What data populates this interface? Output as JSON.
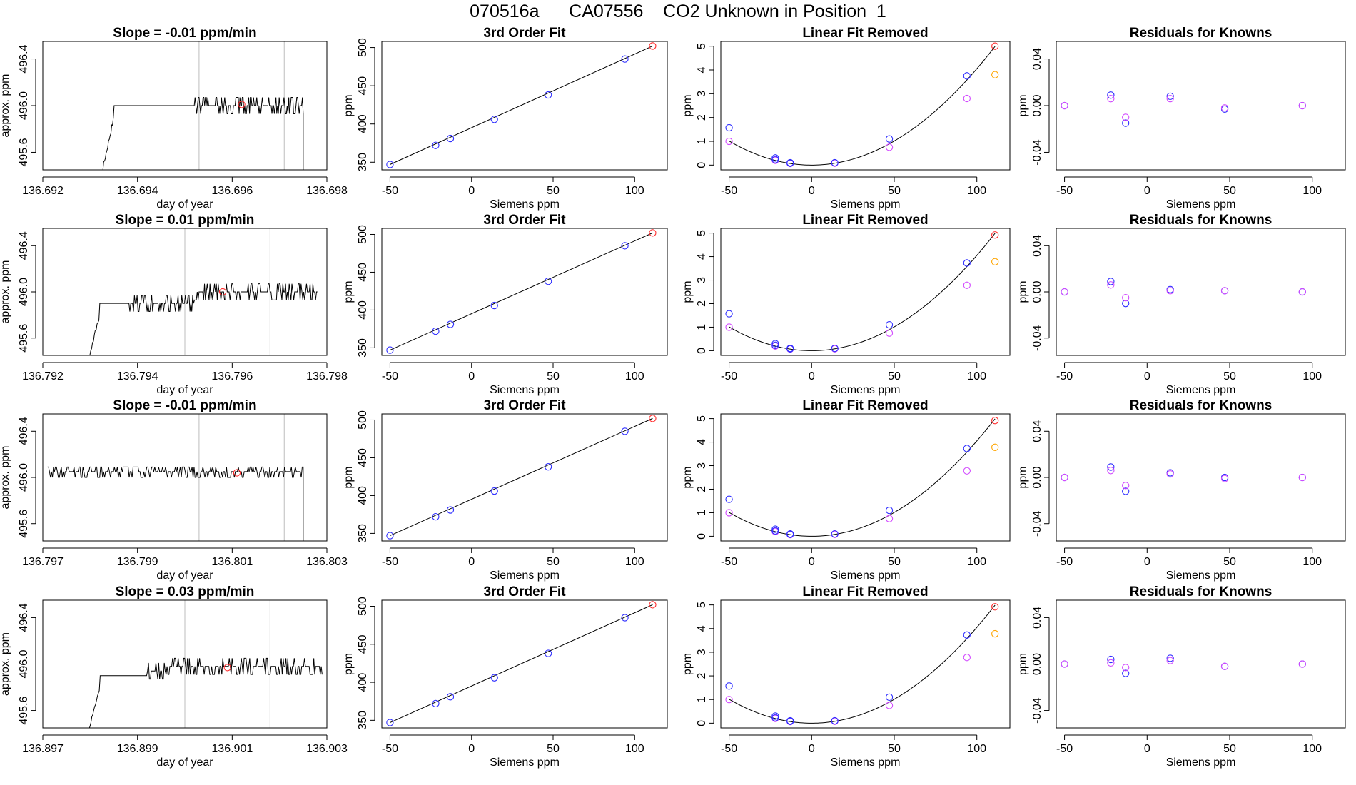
{
  "main_title": "070516a      CA07556    CO2 Unknown in Position  1",
  "colors": {
    "known": "#2e2eff",
    "unknown": "#ff2a2a",
    "adjusted": "#d24bff",
    "unknown_adjusted": "#ffa500",
    "line": "#000000",
    "interval_line": "#c8c8c8"
  },
  "chart_data": [
    {
      "type": "line",
      "row": 1,
      "panel": "time",
      "title": "Slope =  -0.01  ppm/min",
      "xlabel": "day of year",
      "ylabel": "approx. ppm",
      "xlim": [
        136.692,
        136.698
      ],
      "ylim": [
        495.45,
        496.55
      ],
      "xticks": [
        136.692,
        136.694,
        136.696,
        136.698
      ],
      "xticklabels": [
        "136.692",
        "136.694",
        "136.696",
        "136.698"
      ],
      "yticks": [
        495.6,
        496.0,
        496.4
      ],
      "yticklabels": [
        "495.6",
        "496.0",
        "496.4"
      ],
      "vlines": [
        136.6953,
        136.6971
      ],
      "point": [
        136.6962,
        496.01
      ],
      "pattern": "rise-plateau-drop",
      "series_params": {
        "start": 136.6931,
        "rise_end": 136.6935,
        "plateau": 496.0,
        "noise_start": 136.6952,
        "drop": 136.6975
      }
    },
    {
      "type": "line",
      "row": 2,
      "panel": "time",
      "title": "Slope =  0.01  ppm/min",
      "xlabel": "day of year",
      "ylabel": "approx. ppm",
      "xlim": [
        136.792,
        136.798
      ],
      "ylim": [
        495.45,
        496.55
      ],
      "xticks": [
        136.792,
        136.794,
        136.796,
        136.798
      ],
      "xticklabels": [
        "136.792",
        "136.794",
        "136.796",
        "136.798"
      ],
      "yticks": [
        495.6,
        496.0,
        496.4
      ],
      "yticklabels": [
        "495.6",
        "496.0",
        "496.4"
      ],
      "vlines": [
        136.795,
        136.7968
      ],
      "point": [
        136.7958,
        496.0
      ],
      "pattern": "rise-plateau-step",
      "series_params": {
        "start": 136.7928,
        "rise_end": 136.7932,
        "plateau": 495.9,
        "noise_start": 136.7938,
        "step": 136.7952,
        "end": 136.7978
      }
    },
    {
      "type": "line",
      "row": 3,
      "panel": "time",
      "title": "Slope =  -0.01  ppm/min",
      "xlabel": "day of year",
      "ylabel": "approx. ppm",
      "xlim": [
        136.797,
        136.803
      ],
      "ylim": [
        495.45,
        496.55
      ],
      "xticks": [
        136.797,
        136.799,
        136.801,
        136.803
      ],
      "xticklabels": [
        "136.797",
        "136.799",
        "136.801",
        "136.803"
      ],
      "yticks": [
        495.6,
        496.0,
        496.4
      ],
      "yticklabels": [
        "495.6",
        "496.0",
        "496.4"
      ],
      "vlines": [
        136.8003,
        136.8021
      ],
      "point": [
        136.8011,
        496.04
      ],
      "pattern": "noise-drop",
      "series_params": {
        "start": 136.7971,
        "plateau": 496.05,
        "drop": 136.8025
      }
    },
    {
      "type": "line",
      "row": 4,
      "panel": "time",
      "title": "Slope =  0.03  ppm/min",
      "xlabel": "day of year",
      "ylabel": "approx. ppm",
      "xlim": [
        136.897,
        136.903
      ],
      "ylim": [
        495.45,
        496.55
      ],
      "xticks": [
        136.897,
        136.899,
        136.901,
        136.903
      ],
      "xticklabels": [
        "136.897",
        "136.899",
        "136.901",
        "136.903"
      ],
      "yticks": [
        495.6,
        496.0,
        496.4
      ],
      "yticklabels": [
        "495.6",
        "496.0",
        "496.4"
      ],
      "vlines": [
        136.9,
        136.9018
      ],
      "point": [
        136.9009,
        495.97
      ],
      "pattern": "rise-plateau-noise",
      "series_params": {
        "start": 136.8978,
        "rise_end": 136.8982,
        "plateau": 495.9,
        "noise_start": 136.8992,
        "end": 136.9029
      }
    },
    {
      "type": "scatter",
      "row": 1,
      "panel": "fit",
      "title": "3rd Order Fit",
      "xlabel": "Siemens ppm",
      "ylabel": "ppm",
      "xlim": [
        -55,
        120
      ],
      "ylim": [
        340,
        508
      ],
      "xticks": [
        -50,
        0,
        50,
        100
      ],
      "xticklabels": [
        "-50",
        "0",
        "50",
        "100"
      ],
      "yticks": [
        350,
        400,
        450,
        500
      ],
      "yticklabels": [
        "350",
        "400",
        "450",
        "500"
      ],
      "knowns": {
        "x": [
          -50,
          -22,
          -13,
          14,
          47,
          94
        ],
        "y": [
          347,
          372,
          381,
          406,
          438,
          485
        ]
      },
      "unknown": {
        "x": 111,
        "y": 502
      },
      "fit_line": {
        "x": [
          -50,
          111
        ],
        "y": [
          347,
          502
        ]
      }
    },
    {
      "type": "scatter",
      "row": 2,
      "panel": "fit",
      "title": "3rd Order Fit",
      "xlabel": "Siemens ppm",
      "ylabel": "ppm",
      "xlim": [
        -55,
        120
      ],
      "ylim": [
        340,
        508
      ],
      "xticks": [
        -50,
        0,
        50,
        100
      ],
      "xticklabels": [
        "-50",
        "0",
        "50",
        "100"
      ],
      "yticks": [
        350,
        400,
        450,
        500
      ],
      "yticklabels": [
        "350",
        "400",
        "450",
        "500"
      ],
      "knowns": {
        "x": [
          -50,
          -22,
          -13,
          14,
          47,
          94
        ],
        "y": [
          347,
          372,
          381,
          406,
          438,
          485
        ]
      },
      "unknown": {
        "x": 111,
        "y": 502
      },
      "fit_line": {
        "x": [
          -50,
          111
        ],
        "y": [
          347,
          502
        ]
      }
    },
    {
      "type": "scatter",
      "row": 3,
      "panel": "fit",
      "title": "3rd Order Fit",
      "xlabel": "Siemens ppm",
      "ylabel": "ppm",
      "xlim": [
        -55,
        120
      ],
      "ylim": [
        340,
        508
      ],
      "xticks": [
        -50,
        0,
        50,
        100
      ],
      "xticklabels": [
        "-50",
        "0",
        "50",
        "100"
      ],
      "yticks": [
        350,
        400,
        450,
        500
      ],
      "yticklabels": [
        "350",
        "400",
        "450",
        "500"
      ],
      "knowns": {
        "x": [
          -50,
          -22,
          -13,
          14,
          47,
          94
        ],
        "y": [
          347,
          372,
          381,
          406,
          438,
          485
        ]
      },
      "unknown": {
        "x": 111,
        "y": 502
      },
      "fit_line": {
        "x": [
          -50,
          111
        ],
        "y": [
          347,
          502
        ]
      }
    },
    {
      "type": "scatter",
      "row": 4,
      "panel": "fit",
      "title": "3rd Order Fit",
      "xlabel": "Siemens ppm",
      "ylabel": "ppm",
      "xlim": [
        -55,
        120
      ],
      "ylim": [
        340,
        508
      ],
      "xticks": [
        -50,
        0,
        50,
        100
      ],
      "xticklabels": [
        "-50",
        "0",
        "50",
        "100"
      ],
      "yticks": [
        350,
        400,
        450,
        500
      ],
      "yticklabels": [
        "350",
        "400",
        "450",
        "500"
      ],
      "knowns": {
        "x": [
          -50,
          -22,
          -13,
          14,
          47,
          94
        ],
        "y": [
          347,
          372,
          381,
          406,
          438,
          485
        ]
      },
      "unknown": {
        "x": 111,
        "y": 502
      },
      "fit_line": {
        "x": [
          -50,
          111
        ],
        "y": [
          347,
          502
        ]
      }
    },
    {
      "type": "scatter",
      "row": 1,
      "panel": "linear_removed",
      "title": "Linear Fit Removed",
      "xlabel": "Siemens ppm",
      "ylabel": "ppm",
      "xlim": [
        -55,
        120
      ],
      "ylim": [
        -0.2,
        5.2
      ],
      "xticks": [
        -50,
        0,
        50,
        100
      ],
      "xticklabels": [
        "-50",
        "0",
        "50",
        "100"
      ],
      "yticks": [
        0,
        1,
        2,
        3,
        4,
        5
      ],
      "yticklabels": [
        "0",
        "1",
        "2",
        "3",
        "4",
        "5"
      ],
      "knowns": {
        "x": [
          -50,
          -22,
          -22,
          -13,
          -13,
          14,
          47,
          94
        ],
        "y": [
          1.57,
          0.3,
          0.23,
          0.1,
          0.08,
          0.1,
          1.1,
          3.75
        ]
      },
      "adjusted": {
        "x": [
          -50,
          -22,
          -13,
          14,
          47,
          94
        ],
        "y": [
          1.0,
          0.2,
          0.07,
          0.08,
          0.75,
          2.8
        ]
      },
      "unknown": {
        "x": 111,
        "y": 5.0
      },
      "unknown_adjusted": {
        "x": 111,
        "y": 3.8
      },
      "curve": {
        "a": 0.000405,
        "b": 0.0,
        "x0": 0
      }
    },
    {
      "type": "scatter",
      "row": 2,
      "panel": "linear_removed",
      "title": "Linear Fit Removed",
      "xlabel": "Siemens ppm",
      "ylabel": "ppm",
      "xlim": [
        -55,
        120
      ],
      "ylim": [
        -0.2,
        5.2
      ],
      "xticks": [
        -50,
        0,
        50,
        100
      ],
      "xticklabels": [
        "-50",
        "0",
        "50",
        "100"
      ],
      "yticks": [
        0,
        1,
        2,
        3,
        4,
        5
      ],
      "yticklabels": [
        "0",
        "1",
        "2",
        "3",
        "4",
        "5"
      ],
      "knowns": {
        "x": [
          -50,
          -22,
          -22,
          -13,
          -13,
          14,
          47,
          94
        ],
        "y": [
          1.57,
          0.3,
          0.23,
          0.1,
          0.08,
          0.1,
          1.1,
          3.73
        ]
      },
      "adjusted": {
        "x": [
          -50,
          -22,
          -13,
          14,
          47,
          94
        ],
        "y": [
          1.0,
          0.2,
          0.07,
          0.08,
          0.75,
          2.78
        ]
      },
      "unknown": {
        "x": 111,
        "y": 4.92
      },
      "unknown_adjusted": {
        "x": 111,
        "y": 3.78
      },
      "curve": {
        "a": 0.000405,
        "b": 0.0,
        "x0": 0
      }
    },
    {
      "type": "scatter",
      "row": 3,
      "panel": "linear_removed",
      "title": "Linear Fit Removed",
      "xlabel": "Siemens ppm",
      "ylabel": "ppm",
      "xlim": [
        -55,
        120
      ],
      "ylim": [
        -0.2,
        5.2
      ],
      "xticks": [
        -50,
        0,
        50,
        100
      ],
      "xticklabels": [
        "-50",
        "0",
        "50",
        "100"
      ],
      "yticks": [
        0,
        1,
        2,
        3,
        4,
        5
      ],
      "yticklabels": [
        "0",
        "1",
        "2",
        "3",
        "4",
        "5"
      ],
      "knowns": {
        "x": [
          -50,
          -22,
          -22,
          -13,
          -13,
          14,
          47,
          94
        ],
        "y": [
          1.57,
          0.3,
          0.23,
          0.1,
          0.08,
          0.1,
          1.1,
          3.73
        ]
      },
      "adjusted": {
        "x": [
          -50,
          -22,
          -13,
          14,
          47,
          94
        ],
        "y": [
          1.0,
          0.2,
          0.07,
          0.08,
          0.75,
          2.78
        ]
      },
      "unknown": {
        "x": 111,
        "y": 4.92
      },
      "unknown_adjusted": {
        "x": 111,
        "y": 3.78
      },
      "curve": {
        "a": 0.000405,
        "b": 0.0,
        "x0": 0
      }
    },
    {
      "type": "scatter",
      "row": 4,
      "panel": "linear_removed",
      "title": "Linear Fit Removed",
      "xlabel": "Siemens ppm",
      "ylabel": "ppm",
      "xlim": [
        -55,
        120
      ],
      "ylim": [
        -0.2,
        5.2
      ],
      "xticks": [
        -50,
        0,
        50,
        100
      ],
      "xticklabels": [
        "-50",
        "0",
        "50",
        "100"
      ],
      "yticks": [
        0,
        1,
        2,
        3,
        4,
        5
      ],
      "yticklabels": [
        "0",
        "1",
        "2",
        "3",
        "4",
        "5"
      ],
      "knowns": {
        "x": [
          -50,
          -22,
          -22,
          -13,
          -13,
          14,
          47,
          94
        ],
        "y": [
          1.57,
          0.3,
          0.23,
          0.1,
          0.08,
          0.1,
          1.1,
          3.73
        ]
      },
      "adjusted": {
        "x": [
          -50,
          -22,
          -13,
          14,
          47,
          94
        ],
        "y": [
          1.0,
          0.2,
          0.07,
          0.08,
          0.75,
          2.78
        ]
      },
      "unknown": {
        "x": 111,
        "y": 4.92
      },
      "unknown_adjusted": {
        "x": 111,
        "y": 3.78
      },
      "curve": {
        "a": 0.000405,
        "b": 0.0,
        "x0": 0
      }
    },
    {
      "type": "scatter",
      "row": 1,
      "panel": "residuals",
      "title": "Residuals for Knowns",
      "xlabel": "Siemens ppm",
      "ylabel": "ppm",
      "xlim": [
        -55,
        120
      ],
      "ylim": [
        -0.055,
        0.055
      ],
      "xticks": [
        -50,
        0,
        50,
        100
      ],
      "xticklabels": [
        "-50",
        "0",
        "50",
        "100"
      ],
      "yticks": [
        -0.04,
        0.0,
        0.04
      ],
      "yticklabels": [
        "-0.04",
        "0.00",
        "0.04"
      ],
      "knowns": {
        "x": [
          -50,
          -22,
          -13,
          14,
          47,
          94
        ],
        "y": [
          0.0,
          0.009,
          -0.015,
          0.008,
          -0.003,
          0.0
        ]
      },
      "adjusted": {
        "x": [
          -50,
          -22,
          -13,
          14,
          47,
          94
        ],
        "y": [
          0.0,
          0.006,
          -0.01,
          0.006,
          -0.002,
          0.0
        ]
      }
    },
    {
      "type": "scatter",
      "row": 2,
      "panel": "residuals",
      "title": "Residuals for Knowns",
      "xlabel": "Siemens ppm",
      "ylabel": "ppm",
      "xlim": [
        -55,
        120
      ],
      "ylim": [
        -0.055,
        0.055
      ],
      "xticks": [
        -50,
        0,
        50,
        100
      ],
      "xticklabels": [
        "-50",
        "0",
        "50",
        "100"
      ],
      "yticks": [
        -0.04,
        0.0,
        0.04
      ],
      "yticklabels": [
        "-0.04",
        "0.00",
        "0.04"
      ],
      "knowns": {
        "x": [
          -50,
          -22,
          -13,
          14,
          47,
          94
        ],
        "y": [
          0.0,
          0.009,
          -0.01,
          0.002,
          0.001,
          0.0
        ]
      },
      "adjusted": {
        "x": [
          -50,
          -22,
          -13,
          14,
          47,
          94
        ],
        "y": [
          0.0,
          0.006,
          -0.005,
          0.001,
          0.001,
          0.0
        ]
      }
    },
    {
      "type": "scatter",
      "row": 3,
      "panel": "residuals",
      "title": "Residuals for Knowns",
      "xlabel": "Siemens ppm",
      "ylabel": "ppm",
      "xlim": [
        -55,
        120
      ],
      "ylim": [
        -0.055,
        0.055
      ],
      "xticks": [
        -50,
        0,
        50,
        100
      ],
      "xticklabels": [
        "-50",
        "0",
        "50",
        "100"
      ],
      "yticks": [
        -0.04,
        0.0,
        0.04
      ],
      "yticklabels": [
        "-0.04",
        "0.00",
        "0.04"
      ],
      "knowns": {
        "x": [
          -50,
          -22,
          -13,
          14,
          47,
          94
        ],
        "y": [
          0.0,
          0.009,
          -0.012,
          0.004,
          0.0,
          0.0
        ]
      },
      "adjusted": {
        "x": [
          -50,
          -22,
          -13,
          14,
          47,
          94
        ],
        "y": [
          0.0,
          0.006,
          -0.007,
          0.003,
          -0.001,
          0.0
        ]
      }
    },
    {
      "type": "scatter",
      "row": 4,
      "panel": "residuals",
      "title": "Residuals for Knowns",
      "xlabel": "Siemens ppm",
      "ylabel": "ppm",
      "xlim": [
        -55,
        120
      ],
      "ylim": [
        -0.055,
        0.055
      ],
      "xticks": [
        -50,
        0,
        50,
        100
      ],
      "xticklabels": [
        "-50",
        "0",
        "50",
        "100"
      ],
      "yticks": [
        -0.04,
        0.0,
        0.04
      ],
      "yticklabels": [
        "-0.04",
        "0.00",
        "0.04"
      ],
      "knowns": {
        "x": [
          -50,
          -22,
          -13,
          14,
          47,
          94
        ],
        "y": [
          0.0,
          0.004,
          -0.008,
          0.005,
          -0.002,
          0.0
        ]
      },
      "adjusted": {
        "x": [
          -50,
          -22,
          -13,
          14,
          47,
          94
        ],
        "y": [
          0.0,
          0.001,
          -0.003,
          0.003,
          -0.002,
          0.0
        ]
      }
    }
  ]
}
